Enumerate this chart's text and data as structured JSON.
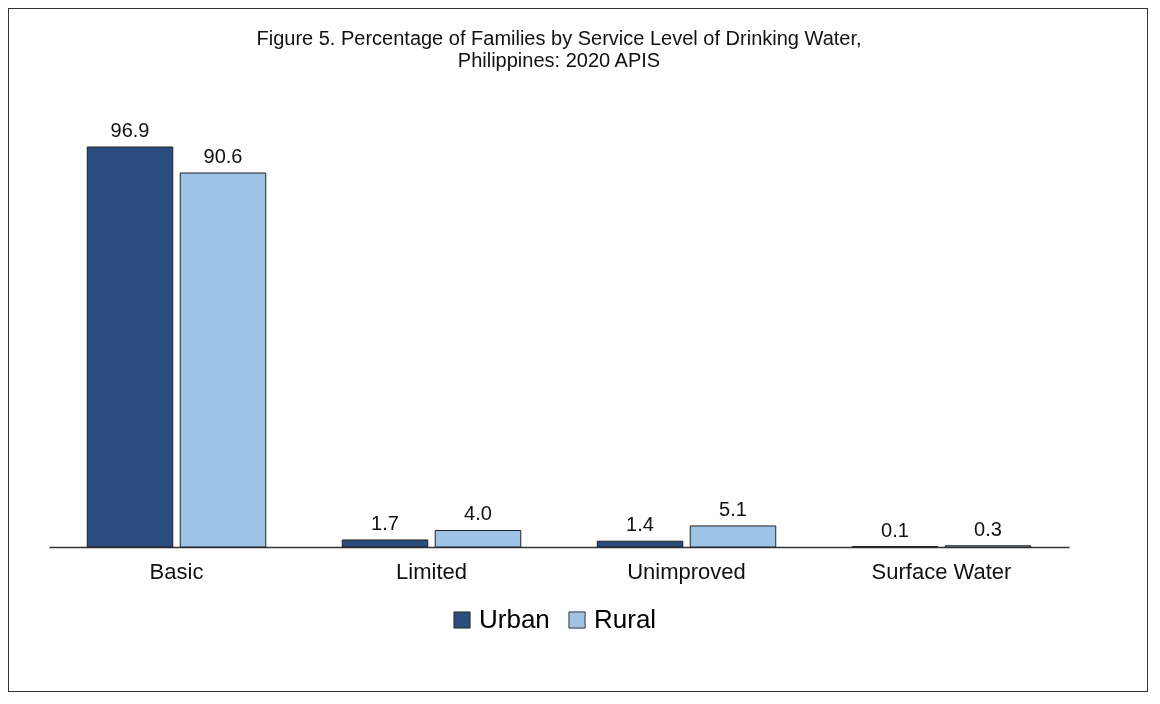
{
  "chart_data": {
    "type": "bar",
    "title": "Figure 5. Percentage of Families by Service Level of Drinking Water,\nPhilippines: 2020 APIS",
    "categories": [
      "Basic",
      "Limited",
      "Unimproved",
      "Surface Water"
    ],
    "series": [
      {
        "name": "Urban",
        "color": "#2b4c7e",
        "values": [
          96.9,
          1.7,
          1.4,
          0.1
        ],
        "value_labels": [
          "96.9",
          "1.7",
          "1.4",
          "0.1"
        ]
      },
      {
        "name": "Rural",
        "color": "#9dc3e6",
        "values": [
          90.6,
          4.0,
          5.1,
          0.3
        ],
        "value_labels": [
          "90.6",
          "4.0",
          "5.1",
          "0.3"
        ]
      }
    ],
    "legend": "bottom"
  }
}
